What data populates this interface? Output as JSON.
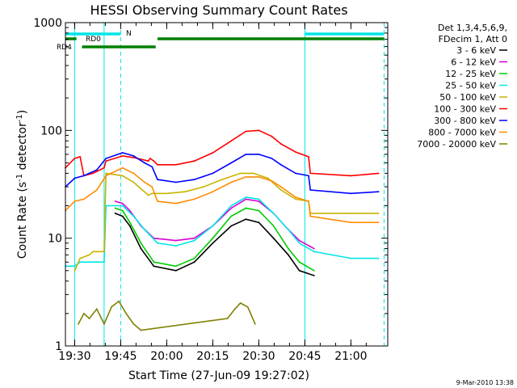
{
  "chart_data": {
    "type": "line",
    "title": "HESSI Observing Summary Count Rates",
    "xlabel": "Start Time (27-Jun-09 19:27:02)",
    "ylabel_parts": [
      "Count Rate (s",
      "-1",
      " detector",
      "-1",
      ")"
    ],
    "yscale": "log",
    "ylim": [
      1,
      1000
    ],
    "xlim_minutes": [
      19.45,
      21.2
    ],
    "x_ticks": [
      {
        "t": 19.5,
        "label": "19:30"
      },
      {
        "t": 19.75,
        "label": "19:45"
      },
      {
        "t": 20.0,
        "label": "20:00"
      },
      {
        "t": 20.25,
        "label": "20:15"
      },
      {
        "t": 20.5,
        "label": "20:30"
      },
      {
        "t": 20.75,
        "label": "20:45"
      },
      {
        "t": 21.0,
        "label": "21:00"
      }
    ],
    "y_ticks": [
      {
        "v": 1,
        "label": "1"
      },
      {
        "v": 10,
        "label": "10"
      },
      {
        "v": 100,
        "label": "100"
      },
      {
        "v": 1000,
        "label": "1000"
      }
    ],
    "legend_header": [
      "Det 1,3,4,5,6,9,",
      "FDecim 1, Att 0"
    ],
    "legend_placement": "right",
    "series": [
      {
        "name": "3 - 6 keV",
        "color": "#000000",
        "points": [
          [
            19.72,
            17
          ],
          [
            19.76,
            16
          ],
          [
            19.8,
            13
          ],
          [
            19.86,
            8
          ],
          [
            19.93,
            5.5
          ],
          [
            20.05,
            5
          ],
          [
            20.15,
            6
          ],
          [
            20.25,
            9
          ],
          [
            20.35,
            13
          ],
          [
            20.43,
            15
          ],
          [
            20.5,
            14
          ],
          [
            20.58,
            10
          ],
          [
            20.66,
            7
          ],
          [
            20.72,
            5
          ],
          [
            20.8,
            4.5
          ]
        ]
      },
      {
        "name": "6 - 12 keV",
        "color": "#d600d6",
        "points": [
          [
            19.72,
            22
          ],
          [
            19.76,
            21
          ],
          [
            19.8,
            18
          ],
          [
            19.86,
            13
          ],
          [
            19.93,
            10
          ],
          [
            20.05,
            9.5
          ],
          [
            20.15,
            10
          ],
          [
            20.25,
            13
          ],
          [
            20.35,
            19
          ],
          [
            20.43,
            23
          ],
          [
            20.5,
            22
          ],
          [
            20.58,
            17
          ],
          [
            20.66,
            12
          ],
          [
            20.72,
            9.5
          ],
          [
            20.8,
            8
          ]
        ]
      },
      {
        "name": "12 - 25 keV",
        "color": "#00cc00",
        "points": [
          [
            19.72,
            19
          ],
          [
            19.76,
            18
          ],
          [
            19.8,
            14
          ],
          [
            19.86,
            9
          ],
          [
            19.93,
            6
          ],
          [
            20.05,
            5.5
          ],
          [
            20.15,
            6.5
          ],
          [
            20.25,
            10
          ],
          [
            20.35,
            16
          ],
          [
            20.43,
            19
          ],
          [
            20.5,
            18
          ],
          [
            20.58,
            13
          ],
          [
            20.66,
            8
          ],
          [
            20.72,
            6
          ],
          [
            20.8,
            5
          ]
        ]
      },
      {
        "name": "25 - 50 keV",
        "color": "#00e6e6",
        "points": [
          [
            19.45,
            5.5
          ],
          [
            19.5,
            5.5
          ],
          [
            19.53,
            6
          ],
          [
            19.66,
            6
          ],
          [
            19.67,
            20
          ],
          [
            19.76,
            20
          ],
          [
            19.82,
            16
          ],
          [
            19.88,
            12
          ],
          [
            19.95,
            9
          ],
          [
            20.05,
            8.5
          ],
          [
            20.15,
            9.5
          ],
          [
            20.25,
            13
          ],
          [
            20.35,
            20
          ],
          [
            20.43,
            24
          ],
          [
            20.5,
            23
          ],
          [
            20.58,
            17
          ],
          [
            20.66,
            12
          ],
          [
            20.72,
            9
          ],
          [
            20.8,
            7.5
          ],
          [
            21.0,
            6.5
          ],
          [
            21.15,
            6.5
          ]
        ]
      },
      {
        "name": "50 - 100 keV",
        "color": "#c8b400",
        "points": [
          [
            19.5,
            5
          ],
          [
            19.53,
            6.5
          ],
          [
            19.58,
            7
          ],
          [
            19.6,
            7.5
          ],
          [
            19.66,
            7.5
          ],
          [
            19.67,
            40
          ],
          [
            19.76,
            38
          ],
          [
            19.82,
            33
          ],
          [
            19.9,
            25
          ],
          [
            19.92,
            26
          ],
          [
            20.0,
            26
          ],
          [
            20.1,
            27
          ],
          [
            20.2,
            30
          ],
          [
            20.3,
            35
          ],
          [
            20.4,
            40
          ],
          [
            20.47,
            40
          ],
          [
            20.55,
            36
          ],
          [
            20.62,
            28
          ],
          [
            20.7,
            23
          ],
          [
            20.77,
            22
          ],
          [
            20.78,
            17
          ],
          [
            21.0,
            17
          ],
          [
            21.15,
            17
          ]
        ]
      },
      {
        "name": "100 - 300 keV",
        "color": "#ff0000",
        "points": [
          [
            19.45,
            45
          ],
          [
            19.5,
            55
          ],
          [
            19.53,
            57
          ],
          [
            19.55,
            38
          ],
          [
            19.6,
            40
          ],
          [
            19.66,
            45
          ],
          [
            19.67,
            52
          ],
          [
            19.76,
            58
          ],
          [
            19.82,
            56
          ],
          [
            19.9,
            52
          ],
          [
            19.91,
            55
          ],
          [
            19.93,
            52
          ],
          [
            19.95,
            48
          ],
          [
            20.05,
            48
          ],
          [
            20.15,
            52
          ],
          [
            20.25,
            62
          ],
          [
            20.35,
            80
          ],
          [
            20.43,
            98
          ],
          [
            20.5,
            100
          ],
          [
            20.57,
            88
          ],
          [
            20.62,
            75
          ],
          [
            20.7,
            63
          ],
          [
            20.77,
            57
          ],
          [
            20.78,
            40
          ],
          [
            21.0,
            38
          ],
          [
            21.15,
            40
          ]
        ]
      },
      {
        "name": "300 - 800 keV",
        "color": "#0000ff",
        "points": [
          [
            19.45,
            30
          ],
          [
            19.5,
            36
          ],
          [
            19.55,
            38
          ],
          [
            19.62,
            43
          ],
          [
            19.67,
            55
          ],
          [
            19.76,
            62
          ],
          [
            19.82,
            58
          ],
          [
            19.88,
            50
          ],
          [
            19.92,
            46
          ],
          [
            19.95,
            35
          ],
          [
            20.05,
            33
          ],
          [
            20.15,
            35
          ],
          [
            20.25,
            40
          ],
          [
            20.35,
            50
          ],
          [
            20.43,
            60
          ],
          [
            20.5,
            60
          ],
          [
            20.57,
            55
          ],
          [
            20.62,
            48
          ],
          [
            20.7,
            40
          ],
          [
            20.77,
            38
          ],
          [
            20.78,
            28
          ],
          [
            21.0,
            26
          ],
          [
            21.15,
            27
          ]
        ]
      },
      {
        "name": "800 - 7000 keV",
        "color": "#ff8c00",
        "points": [
          [
            19.45,
            18
          ],
          [
            19.5,
            22
          ],
          [
            19.55,
            23
          ],
          [
            19.62,
            28
          ],
          [
            19.67,
            38
          ],
          [
            19.76,
            45
          ],
          [
            19.82,
            40
          ],
          [
            19.88,
            33
          ],
          [
            19.92,
            30
          ],
          [
            19.95,
            22
          ],
          [
            20.05,
            21
          ],
          [
            20.15,
            23
          ],
          [
            20.25,
            27
          ],
          [
            20.35,
            33
          ],
          [
            20.43,
            37
          ],
          [
            20.5,
            37
          ],
          [
            20.57,
            34
          ],
          [
            20.62,
            30
          ],
          [
            20.7,
            24
          ],
          [
            20.77,
            22
          ],
          [
            20.78,
            16
          ],
          [
            21.0,
            14
          ],
          [
            21.15,
            14
          ]
        ]
      },
      {
        "name": "7000 - 20000 keV",
        "color": "#808000",
        "points": [
          [
            19.52,
            1.6
          ],
          [
            19.55,
            2.0
          ],
          [
            19.58,
            1.8
          ],
          [
            19.62,
            2.2
          ],
          [
            19.66,
            1.6
          ],
          [
            19.7,
            2.3
          ],
          [
            19.74,
            2.6
          ],
          [
            19.78,
            2.0
          ],
          [
            19.82,
            1.6
          ],
          [
            19.86,
            1.4
          ],
          [
            20.33,
            1.8
          ],
          [
            20.37,
            2.2
          ],
          [
            20.4,
            2.5
          ],
          [
            20.44,
            2.3
          ],
          [
            20.48,
            1.6
          ]
        ]
      }
    ],
    "annotations": [
      {
        "label": "N",
        "color": "#00e6e6",
        "segments": [
          [
            19.45,
            19.75
          ],
          [
            20.75,
            21.18
          ]
        ]
      },
      {
        "label": "RD0",
        "color": "#008000",
        "segments": [
          [
            19.45,
            19.51
          ],
          [
            19.95,
            21.18
          ]
        ]
      },
      {
        "label": "RD4",
        "color": "#008000",
        "segments": [
          [
            19.54,
            19.94
          ]
        ]
      }
    ],
    "grid": false
  },
  "footer": {
    "timestamp": "9-Mar-2010 13:38"
  }
}
